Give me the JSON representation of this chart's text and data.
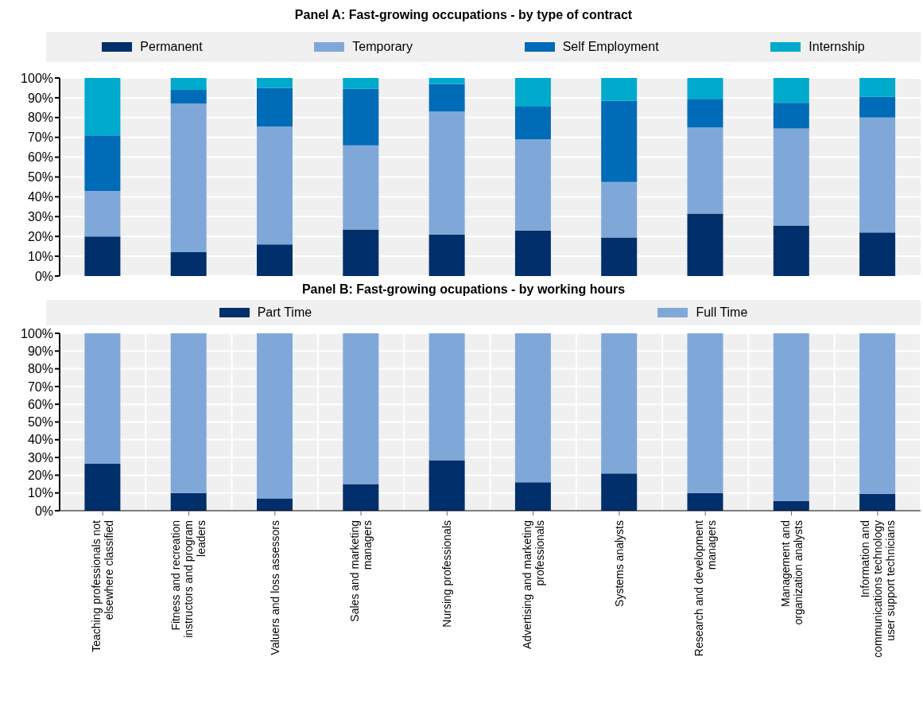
{
  "chart_data": [
    {
      "type": "bar",
      "title": "Panel A: Fast-growing occupations - by type of contract",
      "stacked": true,
      "legend": "top",
      "grid": "y",
      "tick_labels": "y",
      "categories": [
        null,
        null,
        null,
        null,
        null,
        null,
        null,
        null,
        null,
        null
      ],
      "ylim": [
        0,
        100
      ],
      "yticks": [
        {
          "value": 0,
          "label": "0%"
        },
        {
          "value": 10,
          "label": "10%"
        },
        {
          "value": 20,
          "label": "20%"
        },
        {
          "value": 30,
          "label": "30%"
        },
        {
          "value": 40,
          "label": "40%"
        },
        {
          "value": 50,
          "label": "50%"
        },
        {
          "value": 60,
          "label": "60%"
        },
        {
          "value": 70,
          "label": "70%"
        },
        {
          "value": 80,
          "label": "80%"
        },
        {
          "value": 90,
          "label": "90%"
        },
        {
          "value": 100,
          "label": "100%"
        }
      ],
      "series": [
        {
          "name": "Permanent",
          "color": "#002f6c",
          "values": [
            20,
            12,
            16,
            23.5,
            21,
            23,
            19.5,
            31.5,
            25.5,
            22
          ]
        },
        {
          "name": "Temporary",
          "color": "#7fa8d9",
          "values": [
            23,
            75,
            59.5,
            42.5,
            62,
            46,
            28,
            43.5,
            49,
            58
          ]
        },
        {
          "name": "Self Employment",
          "color": "#006bb6",
          "values": [
            28,
            7,
            19.5,
            28.5,
            14,
            16.5,
            41,
            14.5,
            13,
            10.5
          ]
        },
        {
          "name": "Internship",
          "color": "#00aacc",
          "values": [
            29,
            6,
            5,
            5.5,
            3,
            14.5,
            11.5,
            10.5,
            12.5,
            9.5
          ]
        }
      ]
    },
    {
      "type": "bar",
      "title": "Panel B: Fast-growing ocupations - by working hours",
      "stacked": true,
      "legend": "top",
      "grid": true,
      "categories": [
        "Teaching professionals not elsewhere classified",
        "Fitness and recreation instructors and program leaders",
        "Valuers and loss assessors",
        "Sales and marketing managers",
        "Nursing professionals",
        "Advertising and marketing professionals",
        "Systems analysts",
        "Research and development managers",
        "Management and organization analysts",
        "Information and communications technology user support technicians"
      ],
      "ylim": [
        0,
        100
      ],
      "yticks": [
        {
          "value": 0,
          "label": "0%"
        },
        {
          "value": 10,
          "label": "10%"
        },
        {
          "value": 20,
          "label": "20%"
        },
        {
          "value": 30,
          "label": "30%"
        },
        {
          "value": 40,
          "label": "40%"
        },
        {
          "value": 50,
          "label": "50%"
        },
        {
          "value": 60,
          "label": "60%"
        },
        {
          "value": 70,
          "label": "70%"
        },
        {
          "value": 80,
          "label": "80%"
        },
        {
          "value": 90,
          "label": "90%"
        },
        {
          "value": 100,
          "label": "100%"
        }
      ],
      "series": [
        {
          "name": "Part Time",
          "color": "#002f6c",
          "values": [
            26.5,
            10,
            7,
            15,
            28.5,
            16,
            21,
            10,
            5.5,
            9.5
          ]
        },
        {
          "name": "Full Time",
          "color": "#7fa8d9",
          "values": [
            73.5,
            90,
            93,
            85,
            71.5,
            84,
            79,
            90,
            94.5,
            90.5
          ]
        }
      ]
    }
  ]
}
